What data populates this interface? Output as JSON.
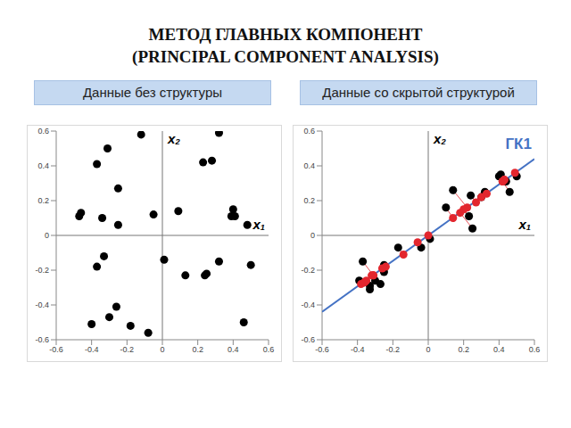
{
  "title": "МЕТОД ГЛАВНЫХ КОМПОНЕНТ",
  "subtitle": "(PRINCIPAL COMPONENT ANALYSIS)",
  "chart_data": [
    {
      "type": "scatter",
      "title": "Данные без структуры",
      "x_label": "x₁",
      "y_label": "x₂",
      "xlim": [
        -0.6,
        0.6
      ],
      "ylim": [
        -0.6,
        0.6
      ],
      "xticks": [
        -0.6,
        -0.4,
        -0.2,
        0,
        0.2,
        0.4,
        0.6
      ],
      "yticks": [
        -0.6,
        -0.4,
        -0.2,
        0,
        0.2,
        0.4,
        0.6
      ],
      "grid": false,
      "series": [
        {
          "color": "#000000",
          "marker": "circle",
          "x": [
            -0.12,
            -0.31,
            -0.37,
            0.32,
            0.23,
            0.28,
            -0.25,
            -0.46,
            -0.47,
            -0.34,
            -0.05,
            -0.25,
            0.09,
            0.4,
            0.41,
            0.39,
            0.48,
            -0.33,
            -0.37,
            0.01,
            0.32,
            0.5,
            0.13,
            0.24,
            0.25,
            -0.26,
            -0.3,
            -0.4,
            -0.18,
            -0.08,
            0.46
          ],
          "values": [
            0.58,
            0.5,
            0.41,
            0.59,
            0.42,
            0.43,
            0.27,
            0.13,
            0.11,
            0.1,
            0.12,
            0.06,
            0.14,
            0.15,
            0.11,
            0.11,
            0.06,
            -0.12,
            -0.18,
            -0.14,
            -0.15,
            -0.17,
            -0.23,
            -0.23,
            -0.22,
            -0.41,
            -0.47,
            -0.51,
            -0.52,
            -0.56,
            -0.5
          ]
        }
      ]
    },
    {
      "type": "scatter",
      "title": "Данные со скрытой структурой",
      "x_label": "x₁",
      "y_label": "x₂",
      "xlim": [
        -0.6,
        0.6
      ],
      "ylim": [
        -0.6,
        0.6
      ],
      "xticks": [
        -0.6,
        -0.4,
        -0.2,
        0,
        0.2,
        0.4,
        0.6
      ],
      "yticks": [
        -0.6,
        -0.4,
        -0.2,
        0,
        0.2,
        0.4,
        0.6
      ],
      "grid": false,
      "series": [
        {
          "type": "line",
          "color": "#4472c4",
          "line_style": "solid",
          "x": [
            -0.6,
            0.6
          ],
          "values": [
            -0.44,
            0.44
          ]
        },
        {
          "color": "#000000",
          "marker": "circle",
          "x": [
            -0.37,
            -0.39,
            -0.36,
            -0.33,
            -0.33,
            -0.3,
            -0.27,
            -0.25,
            -0.25,
            -0.17,
            -0.04,
            0.01,
            0.1,
            0.14,
            0.24,
            0.23,
            0.25,
            0.3,
            0.32,
            0.4,
            0.41,
            0.44,
            0.46,
            0.5
          ],
          "values": [
            -0.15,
            -0.26,
            -0.27,
            -0.29,
            -0.31,
            -0.26,
            -0.28,
            -0.17,
            -0.21,
            -0.07,
            -0.07,
            -0.02,
            0.16,
            0.26,
            0.23,
            0.11,
            0.04,
            0.22,
            0.25,
            0.34,
            0.35,
            0.31,
            0.25,
            0.34
          ]
        },
        {
          "color": "#e3262e",
          "marker": "circle",
          "x": [
            -0.31,
            -0.38,
            -0.36,
            -0.35,
            -0.36,
            -0.32,
            -0.31,
            -0.24,
            -0.26,
            -0.14,
            -0.06,
            0.0,
            0.14,
            0.22,
            0.27,
            0.2,
            0.18,
            0.3,
            0.33,
            0.42,
            0.43,
            0.43,
            0.42,
            0.49
          ],
          "values": [
            -0.23,
            -0.28,
            -0.27,
            -0.26,
            -0.27,
            -0.23,
            -0.23,
            -0.18,
            -0.19,
            -0.11,
            -0.04,
            0.0,
            0.1,
            0.16,
            0.19,
            0.15,
            0.13,
            0.22,
            0.24,
            0.31,
            0.32,
            0.32,
            0.31,
            0.36
          ]
        }
      ],
      "annotations": [
        {
          "text": "ГК1",
          "x": 0.51,
          "y": 0.53
        }
      ]
    }
  ]
}
